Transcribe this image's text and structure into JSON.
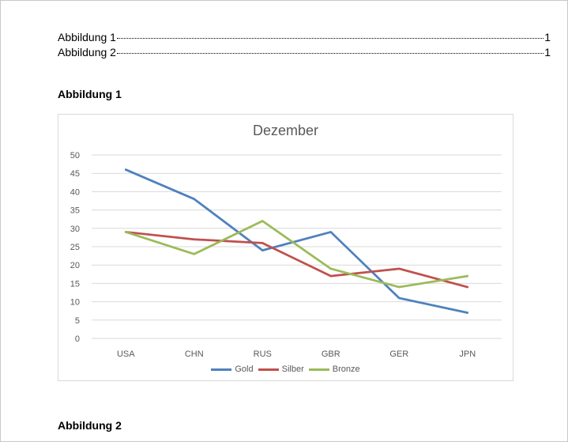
{
  "toc": [
    {
      "label": "Abbildung 1",
      "page": "1"
    },
    {
      "label": "Abbildung 2",
      "page": "1"
    }
  ],
  "headings": {
    "figure1": "Abbildung 1",
    "figure2": "Abbildung 2"
  },
  "chart_data": {
    "type": "line",
    "title": "Dezember",
    "xlabel": "",
    "ylabel": "",
    "categories": [
      "USA",
      "CHN",
      "RUS",
      "GBR",
      "GER",
      "JPN"
    ],
    "ylim": [
      0,
      50
    ],
    "yticks": [
      0,
      5,
      10,
      15,
      20,
      25,
      30,
      35,
      40,
      45,
      50
    ],
    "grid": true,
    "legend_position": "bottom",
    "series": [
      {
        "name": "Gold",
        "color": "#4f81bd",
        "values": [
          46,
          38,
          24,
          29,
          11,
          7
        ]
      },
      {
        "name": "Silber",
        "color": "#c0504d",
        "values": [
          29,
          27,
          26,
          17,
          19,
          14
        ]
      },
      {
        "name": "Bronze",
        "color": "#9bbb59",
        "values": [
          29,
          23,
          32,
          19,
          14,
          17
        ]
      }
    ]
  }
}
